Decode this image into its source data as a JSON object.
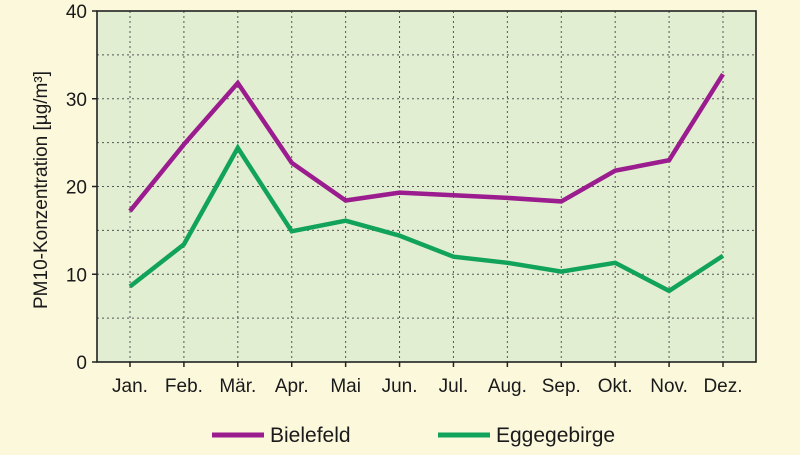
{
  "background": "#fbf8dc",
  "plot_background": "#e2eed2",
  "chart_data": {
    "type": "line",
    "title": "",
    "xlabel": "",
    "ylabel": "PM10-Konzentration [µg/m³]",
    "ylim": [
      0,
      40
    ],
    "yticks": [
      "0",
      "10",
      "20",
      "30",
      "40"
    ],
    "ytick_values": [
      0,
      10,
      20,
      30,
      40
    ],
    "grid": true,
    "legend_position": "bottom",
    "categories": [
      "Jan.",
      "Feb.",
      "Mär.",
      "Apr.",
      "Mai",
      "Jun.",
      "Jul.",
      "Aug.",
      "Sep.",
      "Okt.",
      "Nov.",
      "Dez."
    ],
    "series": [
      {
        "name": "Bielefeld",
        "color": "#9b1c8e",
        "values": [
          17.2,
          24.8,
          31.8,
          22.7,
          18.4,
          19.3,
          19.0,
          18.7,
          18.3,
          21.8,
          23.0,
          32.8
        ]
      },
      {
        "name": "Eggegebirge",
        "color": "#12a35a",
        "values": [
          8.6,
          13.4,
          24.4,
          14.9,
          16.1,
          14.4,
          12.0,
          11.3,
          10.3,
          11.3,
          8.1,
          12.1
        ]
      }
    ]
  }
}
